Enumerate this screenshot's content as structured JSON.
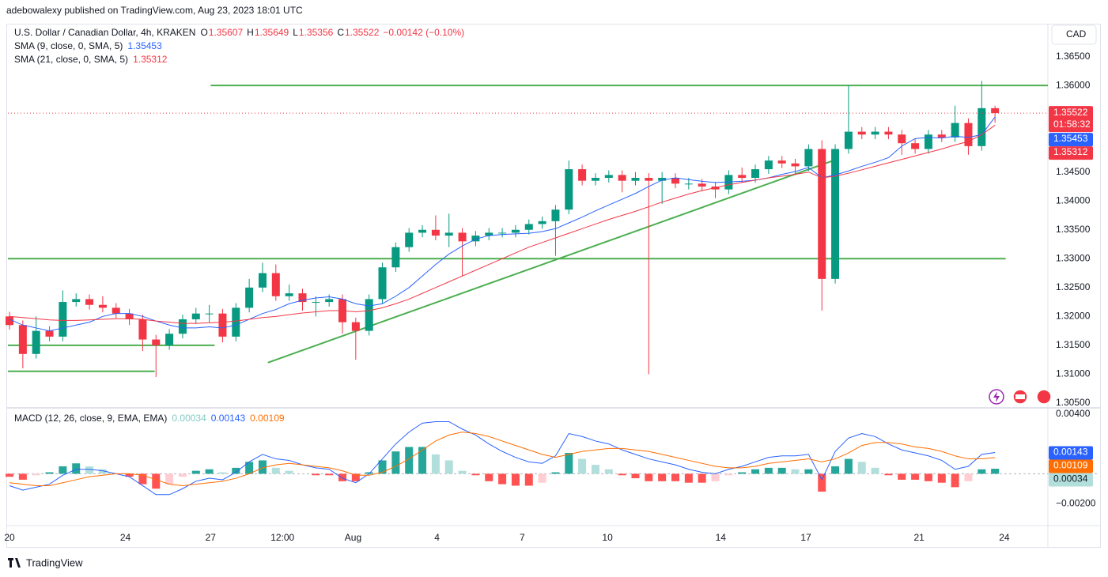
{
  "header": "adebowalexy published on TradingView.com, Aug 23, 2023 18:01 UTC",
  "brand": "TradingView",
  "currency_button": "CAD",
  "countdown": "01:58:32",
  "chart_data": [
    {
      "type": "candlestick",
      "title": "U.S. Dollar / Canadian Dollar, 4h, KRAKEN",
      "ohlc_labels": [
        "O",
        "H",
        "L",
        "C"
      ],
      "change_label": "−0.00142 (−0.10%)",
      "up_color": "#089981",
      "down_color": "#f23645",
      "xlim": [
        -0.12,
        77.97
      ],
      "xticks": [
        {
          "value": 0,
          "label": "20"
        },
        {
          "value": 8.7,
          "label": "24"
        },
        {
          "value": 15.1,
          "label": "27"
        },
        {
          "value": 20.5,
          "label": "12:00"
        },
        {
          "value": 25.8,
          "label": "Aug"
        },
        {
          "value": 32.1,
          "label": "4"
        },
        {
          "value": 38.5,
          "label": "7"
        },
        {
          "value": 44.9,
          "label": "10"
        },
        {
          "value": 53.4,
          "label": "14"
        },
        {
          "value": 59.8,
          "label": "17"
        },
        {
          "value": 68.3,
          "label": "21"
        },
        {
          "value": 74.7,
          "label": "24"
        }
      ],
      "ylim": [
        1.3043,
        1.3707
      ],
      "yticks": [
        {
          "value": 1.365,
          "label": "1.36500"
        },
        {
          "value": 1.36,
          "label": "1.36000"
        },
        {
          "value": 1.345,
          "label": "1.34500"
        },
        {
          "value": 1.34,
          "label": "1.34000"
        },
        {
          "value": 1.335,
          "label": "1.33500"
        },
        {
          "value": 1.33,
          "label": "1.33000"
        },
        {
          "value": 1.325,
          "label": "1.32500"
        },
        {
          "value": 1.32,
          "label": "1.32000"
        },
        {
          "value": 1.315,
          "label": "1.31500"
        },
        {
          "value": 1.31,
          "label": "1.31000"
        },
        {
          "value": 1.305,
          "label": "1.30500"
        }
      ],
      "grid": false,
      "candles": {
        "open": [
          1.32,
          1.3185,
          1.3135,
          1.3175,
          1.3165,
          1.3225,
          1.323,
          1.322,
          1.3215,
          1.3205,
          1.3195,
          1.316,
          1.315,
          1.317,
          1.3195,
          1.3205,
          1.3205,
          1.3165,
          1.3215,
          1.325,
          1.3275,
          1.3235,
          1.324,
          1.3225,
          1.3225,
          1.323,
          1.319,
          1.3175,
          1.323,
          1.3285,
          1.332,
          1.3345,
          1.335,
          1.334,
          1.3345,
          1.333,
          1.334,
          1.3345,
          1.3345,
          1.335,
          1.336,
          1.3365,
          1.3385,
          1.3455,
          1.3435,
          1.344,
          1.3445,
          1.3435,
          1.344,
          1.3435,
          1.344,
          1.343,
          1.343,
          1.3425,
          1.342,
          1.3445,
          1.344,
          1.3455,
          1.347,
          1.3465,
          1.346,
          1.349,
          1.3265,
          1.349,
          1.352,
          1.3515,
          1.352,
          1.3515,
          1.35,
          1.349,
          1.3515,
          1.351,
          1.3535,
          1.3495,
          1.35607
        ],
        "high": [
          1.3208,
          1.3193,
          1.32,
          1.3183,
          1.3245,
          1.324,
          1.3238,
          1.3235,
          1.3223,
          1.3213,
          1.3203,
          1.3168,
          1.3178,
          1.3203,
          1.3215,
          1.322,
          1.3213,
          1.3223,
          1.3265,
          1.3293,
          1.329,
          1.3255,
          1.3248,
          1.3235,
          1.3238,
          1.3238,
          1.3198,
          1.3238,
          1.3293,
          1.3328,
          1.3353,
          1.3358,
          1.3375,
          1.3378,
          1.3353,
          1.3348,
          1.3353,
          1.3353,
          1.3358,
          1.3368,
          1.3373,
          1.3393,
          1.347,
          1.3463,
          1.3448,
          1.3453,
          1.3453,
          1.345,
          1.3448,
          1.345,
          1.3448,
          1.344,
          1.3438,
          1.3433,
          1.3453,
          1.3458,
          1.3463,
          1.3478,
          1.3478,
          1.3473,
          1.3498,
          1.3505,
          1.3498,
          1.36,
          1.3528,
          1.3528,
          1.3528,
          1.3523,
          1.3508,
          1.3523,
          1.3523,
          1.3565,
          1.3543,
          1.3608,
          1.35649
        ],
        "low": [
          1.3177,
          1.311,
          1.3127,
          1.3157,
          1.3157,
          1.3217,
          1.3212,
          1.3207,
          1.3197,
          1.3185,
          1.314,
          1.3095,
          1.3142,
          1.3162,
          1.3187,
          1.319,
          1.3155,
          1.3157,
          1.3207,
          1.3242,
          1.3227,
          1.3227,
          1.321,
          1.32,
          1.3217,
          1.317,
          1.3125,
          1.3167,
          1.3222,
          1.3277,
          1.3312,
          1.3337,
          1.3332,
          1.332,
          1.327,
          1.3322,
          1.3332,
          1.3337,
          1.3337,
          1.3342,
          1.3352,
          1.3305,
          1.3377,
          1.3427,
          1.3427,
          1.3432,
          1.3415,
          1.3427,
          1.31,
          1.3395,
          1.3422,
          1.342,
          1.3417,
          1.3405,
          1.3412,
          1.3432,
          1.3432,
          1.3447,
          1.3457,
          1.3445,
          1.3452,
          1.321,
          1.3257,
          1.3482,
          1.3507,
          1.3507,
          1.3507,
          1.348,
          1.3482,
          1.3482,
          1.3502,
          1.3502,
          1.348,
          1.3487,
          1.35356
        ],
        "close": [
          1.3185,
          1.3135,
          1.3175,
          1.3165,
          1.3225,
          1.323,
          1.322,
          1.3215,
          1.3205,
          1.3195,
          1.316,
          1.315,
          1.317,
          1.3195,
          1.3205,
          1.3205,
          1.3165,
          1.3215,
          1.325,
          1.3275,
          1.3235,
          1.324,
          1.3225,
          1.3225,
          1.323,
          1.319,
          1.3175,
          1.323,
          1.3285,
          1.332,
          1.3345,
          1.335,
          1.334,
          1.3345,
          1.333,
          1.334,
          1.3345,
          1.3345,
          1.335,
          1.336,
          1.3365,
          1.3385,
          1.3455,
          1.3435,
          1.344,
          1.3445,
          1.3435,
          1.344,
          1.3435,
          1.344,
          1.343,
          1.343,
          1.3425,
          1.342,
          1.3445,
          1.344,
          1.3455,
          1.347,
          1.3465,
          1.346,
          1.349,
          1.3265,
          1.349,
          1.352,
          1.3515,
          1.352,
          1.3515,
          1.35,
          1.349,
          1.3515,
          1.351,
          1.3535,
          1.3495,
          1.35607,
          1.35522
        ]
      },
      "series": [
        {
          "name": "SMA (9, close, 0, SMA, 5)",
          "color": "#2962ff",
          "values": [
            1.3195,
            1.3185,
            1.318,
            1.3175,
            1.318,
            1.3185,
            1.319,
            1.32,
            1.3205,
            1.3205,
            1.32,
            1.3192,
            1.3185,
            1.318,
            1.318,
            1.3182,
            1.318,
            1.3185,
            1.3195,
            1.3205,
            1.3212,
            1.3222,
            1.3228,
            1.3232,
            1.3234,
            1.323,
            1.3222,
            1.3218,
            1.3222,
            1.3235,
            1.325,
            1.327,
            1.329,
            1.3308,
            1.3322,
            1.3334,
            1.334,
            1.3342,
            1.3343,
            1.3344,
            1.3347,
            1.3352,
            1.3362,
            1.3372,
            1.3383,
            1.3393,
            1.3403,
            1.3413,
            1.3425,
            1.3436,
            1.344,
            1.3437,
            1.3434,
            1.3432,
            1.3433,
            1.3434,
            1.3436,
            1.344,
            1.3446,
            1.3451,
            1.3458,
            1.344,
            1.3445,
            1.3452,
            1.346,
            1.3467,
            1.3475,
            1.3495,
            1.3508,
            1.351,
            1.3509,
            1.3512,
            1.351,
            1.3515,
            1.35453
          ]
        },
        {
          "name": "SMA (21, close, 0, SMA, 5)",
          "color": "#f23645",
          "values": [
            1.32,
            1.3198,
            1.3196,
            1.3194,
            1.3193,
            1.3193,
            1.3194,
            1.3195,
            1.3196,
            1.3196,
            1.3195,
            1.3192,
            1.319,
            1.3188,
            1.3188,
            1.3189,
            1.319,
            1.3192,
            1.3195,
            1.3198,
            1.32,
            1.3203,
            1.3206,
            1.3208,
            1.321,
            1.321,
            1.3208,
            1.321,
            1.3215,
            1.3222,
            1.323,
            1.324,
            1.325,
            1.326,
            1.327,
            1.328,
            1.329,
            1.33,
            1.331,
            1.332,
            1.3328,
            1.3336,
            1.3344,
            1.3352,
            1.336,
            1.3368,
            1.3375,
            1.3382,
            1.339,
            1.3398,
            1.3405,
            1.3412,
            1.3418,
            1.3423,
            1.3428,
            1.3432,
            1.3436,
            1.344,
            1.3443,
            1.3446,
            1.345,
            1.344,
            1.3443,
            1.3448,
            1.3454,
            1.346,
            1.3466,
            1.3472,
            1.3478,
            1.3484,
            1.349,
            1.3497,
            1.3503,
            1.3515,
            1.35312
          ]
        }
      ],
      "drawing_color": "#4caf50",
      "drawings": [
        {
          "x": [
            15.1,
            77.97
          ],
          "y": [
            1.36,
            1.36
          ]
        },
        {
          "x": [
            -0.12,
            74.8
          ],
          "y": [
            1.33,
            1.33
          ]
        },
        {
          "x": [
            -0.12,
            15.4
          ],
          "y": [
            1.315,
            1.315
          ]
        },
        {
          "x": [
            -0.12,
            10.9
          ],
          "y": [
            1.3105,
            1.3105
          ]
        },
        {
          "x": [
            19.4,
            62.1
          ],
          "y": [
            1.312,
            1.3472
          ]
        }
      ]
    },
    {
      "type": "macd",
      "title": "MACD (12, 26, close, 9, EMA, EMA)",
      "ylim": [
        -0.00311,
        0.00432
      ],
      "yticks": [
        {
          "value": 0.004,
          "label": "0.00400"
        },
        {
          "value": -0.002,
          "label": "−0.00200"
        }
      ],
      "histogram": {
        "colors": [
          "#26a69a",
          "#b2dfdb",
          "#ffcdd2",
          "#ff5252"
        ],
        "label_color": "#80cbc4",
        "values": [
          -0.0002,
          -0.0004,
          -0.0001,
          0.0001,
          0.0005,
          0.0007,
          0.0005,
          0.0003,
          0,
          -0.0002,
          -0.0007,
          -0.001,
          -0.0007,
          -0.0002,
          0.0002,
          0.0003,
          0.0001,
          0.0004,
          0.0008,
          0.0009,
          0.0004,
          0.0002,
          0,
          -0.0001,
          -0.0001,
          -0.0005,
          -0.0005,
          0.0001,
          0.0009,
          0.0015,
          0.0018,
          0.0018,
          0.0013,
          0.0009,
          0.0002,
          -0.0001,
          -0.0005,
          -0.0007,
          -0.0008,
          -0.0008,
          -0.0006,
          0.0001,
          0.0014,
          0.001,
          0.0006,
          0.0003,
          -0.0001,
          -0.0003,
          -0.0005,
          -0.0005,
          -0.0005,
          -0.0006,
          -0.0006,
          -0.0005,
          -0.0001,
          0.0001,
          0.0003,
          0.0004,
          0.0004,
          0.0003,
          0.0003,
          -0.0012,
          0.0005,
          0.001,
          0.0008,
          0.0004,
          -0.0001,
          -0.0004,
          -0.0004,
          -0.0005,
          -0.0006,
          -0.0009,
          -0.0005,
          0.0003,
          0.00034
        ]
      },
      "series": [
        {
          "name": "MACD",
          "color": "#2962ff",
          "values": [
            -0.0008,
            -0.0011,
            -0.0009,
            -0.0007,
            -0.0001,
            0.0003,
            0.0003,
            0.0002,
            0,
            -0.0002,
            -0.0008,
            -0.0014,
            -0.0014,
            -0.001,
            -0.0005,
            -0.0003,
            -0.0004,
            0.0001,
            0.0008,
            0.0013,
            0.001,
            0.0009,
            0.0006,
            0.0004,
            0.0003,
            -0.0003,
            -0.0006,
            0,
            0.001,
            0.002,
            0.0028,
            0.0034,
            0.0035,
            0.0035,
            0.003,
            0.0026,
            0.002,
            0.0015,
            0.0011,
            0.0008,
            0.0007,
            0.0012,
            0.0027,
            0.0025,
            0.0022,
            0.002,
            0.0016,
            0.0013,
            0.001,
            0.0008,
            0.0006,
            0.0003,
            0.0001,
            0,
            0.0003,
            0.0005,
            0.0008,
            0.0011,
            0.0012,
            0.0012,
            0.0013,
            -0.0004,
            0.0015,
            0.0024,
            0.0027,
            0.0025,
            0.002,
            0.0016,
            0.0014,
            0.0012,
            0.0009,
            0.0003,
            0.0005,
            0.0013,
            0.00143
          ]
        },
        {
          "name": "Signal",
          "color": "#ff6d00",
          "values": [
            -0.0006,
            -0.0007,
            -0.0008,
            -0.0008,
            -0.0006,
            -0.0004,
            -0.0002,
            -0.0001,
            0,
            0,
            -0.0001,
            -0.0004,
            -0.0007,
            -0.0008,
            -0.0007,
            -0.0006,
            -0.0005,
            -0.0003,
            0,
            0.0004,
            0.0006,
            0.0007,
            0.0006,
            0.0005,
            0.0004,
            0.0002,
            -0.0001,
            -0.0001,
            0.0001,
            0.0005,
            0.001,
            0.0016,
            0.0022,
            0.0026,
            0.0028,
            0.0027,
            0.0025,
            0.0022,
            0.0019,
            0.0016,
            0.0013,
            0.0011,
            0.0013,
            0.0015,
            0.0016,
            0.0017,
            0.0017,
            0.0016,
            0.0015,
            0.0013,
            0.0011,
            0.0009,
            0.0007,
            0.0005,
            0.0004,
            0.0004,
            0.0005,
            0.0007,
            0.0008,
            0.0009,
            0.001,
            0.0008,
            0.001,
            0.0014,
            0.0019,
            0.0021,
            0.0021,
            0.002,
            0.0018,
            0.0017,
            0.0015,
            0.0012,
            0.001,
            0.001,
            0.00109
          ]
        }
      ]
    }
  ]
}
